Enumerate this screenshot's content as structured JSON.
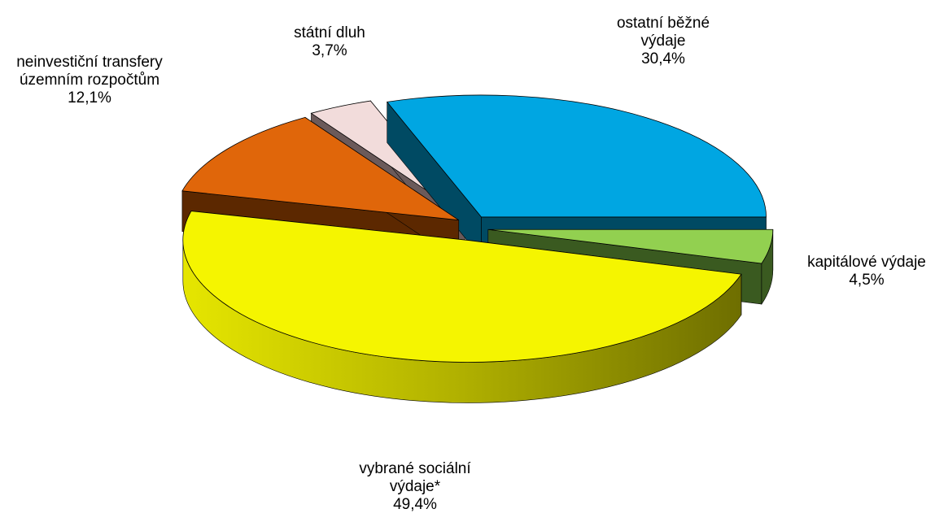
{
  "chart_data": {
    "type": "pie3d",
    "categories": [
      "ostatní běžné výdaje",
      "kapitálové výdaje",
      "vybrané sociální výdaje*",
      "neinvestiční transfery územním rozpočtům",
      "státní dluh"
    ],
    "values": [
      30.4,
      4.5,
      49.4,
      12.1,
      3.7
    ],
    "value_labels": [
      "30,4%",
      "4,5%",
      "49,4%",
      "12,1%",
      "3,7%"
    ],
    "colors": [
      "#00a6e2",
      "#92d050",
      "#f5f500",
      "#e0660a",
      "#f2dcdb"
    ]
  }
}
